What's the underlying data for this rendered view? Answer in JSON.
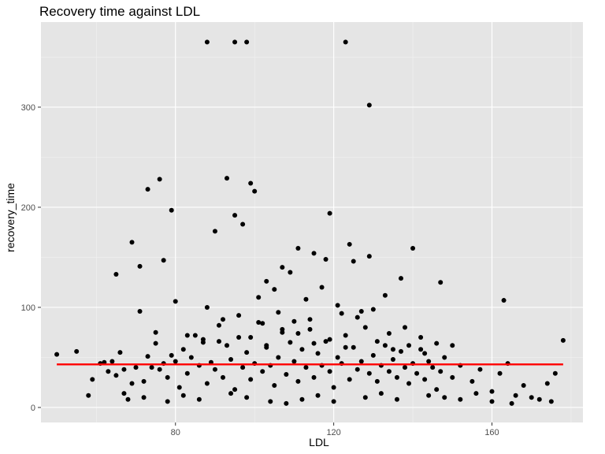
{
  "chart_data": {
    "type": "scatter",
    "title": "Recovery time against LDL",
    "xlabel": "LDL",
    "ylabel": "recovery_time",
    "xlim": [
      46,
      183
    ],
    "ylim": [
      -15,
      385
    ],
    "x_ticks": [
      80,
      120,
      160
    ],
    "y_ticks": [
      0,
      100,
      200,
      300
    ],
    "x_tick_labels": [
      "80",
      "120",
      "160"
    ],
    "y_tick_labels": [
      "0",
      "100",
      "200",
      "300"
    ],
    "grid": true,
    "background_color": "#e5e5e5",
    "point_color": "#000000",
    "trend_line": {
      "x": [
        50,
        178
      ],
      "y": [
        43,
        43
      ],
      "color": "#ff0000"
    },
    "points": {
      "x": [
        50,
        55,
        58,
        59,
        61,
        62,
        63,
        64,
        65,
        66,
        67,
        68,
        69,
        70,
        71,
        72,
        73,
        74,
        75,
        76,
        77,
        78,
        79,
        80,
        81,
        82,
        83,
        84,
        85,
        86,
        87,
        88,
        89,
        90,
        91,
        92,
        93,
        94,
        95,
        96,
        97,
        98,
        99,
        100,
        101,
        102,
        103,
        104,
        105,
        106,
        107,
        108,
        109,
        110,
        111,
        112,
        113,
        114,
        115,
        116,
        117,
        118,
        119,
        120,
        121,
        122,
        123,
        124,
        125,
        126,
        127,
        128,
        129,
        130,
        131,
        132,
        133,
        134,
        135,
        136,
        137,
        138,
        139,
        140,
        141,
        142,
        143,
        144,
        145,
        146,
        147,
        148,
        150,
        152,
        155,
        157,
        160,
        162,
        164,
        166,
        168,
        172,
        174,
        176,
        178,
        88,
        95,
        98,
        123,
        129,
        93,
        99,
        100,
        76,
        73,
        79,
        119,
        90,
        97,
        111,
        124,
        129,
        140,
        65,
        69,
        77,
        71,
        80,
        95,
        103,
        107,
        115,
        118,
        125,
        137,
        147,
        163,
        101,
        105,
        109,
        113,
        117,
        121,
        127,
        133,
        88,
        92,
        96,
        102,
        106,
        110,
        114,
        122,
        126,
        130,
        134,
        138,
        142,
        146,
        150,
        75,
        83,
        87,
        91,
        99,
        103,
        107,
        111,
        115,
        119,
        123,
        131,
        135,
        139,
        143,
        67,
        72,
        78,
        82,
        86,
        94,
        98,
        104,
        108,
        112,
        116,
        120,
        128,
        132,
        136,
        144,
        148,
        152,
        156,
        160,
        165,
        170,
        175
      ],
      "y": [
        53,
        56,
        12,
        28,
        44,
        45,
        36,
        46,
        32,
        55,
        38,
        8,
        24,
        40,
        96,
        26,
        51,
        40,
        64,
        38,
        44,
        30,
        52,
        46,
        20,
        58,
        34,
        50,
        72,
        42,
        65,
        24,
        45,
        38,
        82,
        30,
        62,
        48,
        18,
        70,
        40,
        55,
        28,
        44,
        85,
        36,
        60,
        42,
        22,
        50,
        75,
        33,
        65,
        46,
        26,
        58,
        40,
        88,
        30,
        54,
        42,
        66,
        36,
        20,
        50,
        44,
        72,
        28,
        60,
        38,
        46,
        80,
        34,
        52,
        26,
        42,
        62,
        36,
        48,
        30,
        56,
        40,
        24,
        44,
        34,
        58,
        28,
        46,
        40,
        18,
        36,
        50,
        30,
        42,
        26,
        38,
        16,
        34,
        44,
        12,
        22,
        8,
        24,
        34,
        67,
        365,
        365,
        365,
        365,
        302,
        229,
        224,
        216,
        228,
        218,
        197,
        194,
        176,
        183,
        159,
        163,
        151,
        159,
        133,
        165,
        147,
        141,
        106,
        192,
        126,
        140,
        154,
        148,
        146,
        129,
        125,
        107,
        110,
        118,
        135,
        108,
        120,
        102,
        96,
        112,
        100,
        88,
        92,
        84,
        95,
        86,
        78,
        94,
        90,
        98,
        74,
        80,
        70,
        64,
        62,
        75,
        72,
        68,
        66,
        70,
        62,
        78,
        74,
        64,
        68,
        60,
        66,
        58,
        62,
        54,
        14,
        10,
        6,
        12,
        8,
        14,
        10,
        6,
        4,
        8,
        12,
        6,
        10,
        14,
        8,
        12,
        10,
        8,
        14,
        6,
        4,
        10,
        6
      ]
    }
  }
}
